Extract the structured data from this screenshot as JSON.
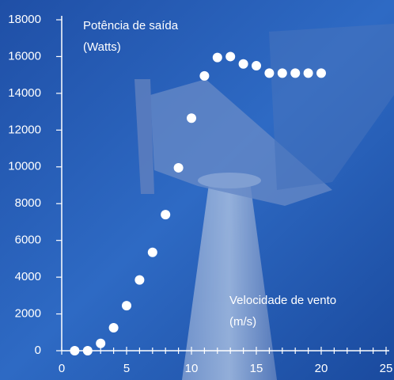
{
  "chart_data": {
    "type": "scatter",
    "annotations": [
      "Potência de saída",
      "(Watts)",
      "Velocidade de vento",
      "(m/s)"
    ],
    "x": [
      1,
      2,
      3,
      4,
      5,
      6,
      7,
      8,
      9,
      10,
      11,
      12,
      13,
      14,
      15,
      16,
      17,
      18,
      19,
      20
    ],
    "values": [
      0,
      0,
      400,
      1250,
      2450,
      3850,
      5350,
      7400,
      9950,
      12650,
      14950,
      15950,
      16000,
      15600,
      15500,
      15100,
      15100,
      15100,
      15100,
      15100
    ],
    "color": "#ffffff",
    "xlim": [
      0,
      25
    ],
    "xticks": [
      0,
      5,
      10,
      15,
      20,
      25
    ],
    "ylim": [
      0,
      18000
    ],
    "yticks": [
      0,
      2000,
      4000,
      6000,
      8000,
      10000,
      12000,
      14000,
      16000,
      18000
    ],
    "grid": false
  }
}
